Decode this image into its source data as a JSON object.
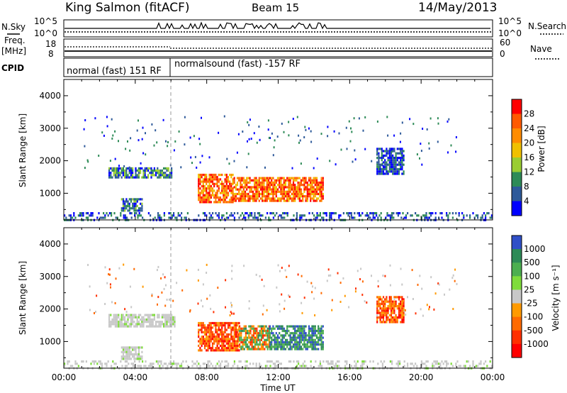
{
  "header": {
    "station": "King Salmon (fitACF)",
    "beam": "Beam 15",
    "date": "14/May/2013"
  },
  "panels": {
    "nsky": {
      "label": "N.Sky",
      "ticks": [
        "10^5",
        "10^0"
      ],
      "right_label": "N.Search",
      "right_ticks": [
        "10^5",
        "10^0"
      ]
    },
    "freq": {
      "label_line1": "Freq.",
      "label_line2": "[MHz]",
      "ticks": [
        "18",
        "8"
      ],
      "right_label": "Nave",
      "right_ticks": [
        "60",
        "0"
      ]
    },
    "cpid": {
      "label": "CPID",
      "modes": [
        "normal (fast) 151 RF",
        "normalsound (fast) -157 RF"
      ]
    }
  },
  "colorbars": {
    "power": {
      "label": "Power [dB]",
      "ticks": [
        "28",
        "24",
        "20",
        "16",
        "12",
        "8",
        "4"
      ],
      "colors": [
        "#ff0000",
        "#ff5a00",
        "#ff8c00",
        "#f0c000",
        "#9acd32",
        "#2e8b57",
        "#2e5a9a",
        "#0000ff"
      ]
    },
    "velocity": {
      "label": "Velocity [m s⁻¹]",
      "ticks": [
        "1000",
        "500",
        "100",
        "25",
        "-25",
        "-100",
        "-500",
        "-1000"
      ],
      "colors": [
        "#3050c8",
        "#2e8b57",
        "#4caf50",
        "#7fdc3c",
        "#c8c8c8",
        "#ff9a00",
        "#ff6a00",
        "#ff3000",
        "#ff0000"
      ]
    }
  },
  "chart_data": [
    {
      "type": "heatmap",
      "title": "Power",
      "ylabel": "Slant Range [km]",
      "xlabel": "Time UT",
      "ylim": [
        180,
        4500
      ],
      "xlim": [
        0,
        24
      ],
      "yticks": [
        "1000",
        "2000",
        "3000",
        "4000"
      ],
      "xticks": [
        "00:00",
        "04:00",
        "08:00",
        "12:00",
        "16:00",
        "20:00",
        "00:00"
      ],
      "regions": [
        {
          "t0": 2.5,
          "t1": 6.0,
          "r0": 1500,
          "r1": 1800,
          "level": "mid",
          "palette": "power"
        },
        {
          "t0": 7.5,
          "t1": 9.5,
          "r0": 700,
          "r1": 1600,
          "level": "high",
          "palette": "power"
        },
        {
          "t0": 9.5,
          "t1": 11.5,
          "r0": 800,
          "r1": 1500,
          "level": "high",
          "palette": "power"
        },
        {
          "t0": 11.5,
          "t1": 14.5,
          "r0": 750,
          "r1": 1500,
          "level": "high",
          "palette": "power"
        },
        {
          "t0": 3.2,
          "t1": 4.4,
          "r0": 500,
          "r1": 850,
          "level": "mid",
          "palette": "power"
        },
        {
          "t0": 17.5,
          "t1": 19.0,
          "r0": 1600,
          "r1": 2400,
          "level": "low",
          "palette": "power"
        },
        {
          "t0": 0.0,
          "t1": 24.0,
          "r0": 180,
          "r1": 420,
          "level": "low",
          "palette": "power"
        }
      ]
    },
    {
      "type": "heatmap",
      "title": "Velocity",
      "ylabel": "Slant Range [km]",
      "xlabel": "Time UT",
      "ylim": [
        180,
        4500
      ],
      "xlim": [
        0,
        24
      ],
      "yticks": [
        "1000",
        "2000",
        "3000",
        "4000"
      ],
      "xticks": [
        "00:00",
        "04:00",
        "08:00",
        "12:00",
        "16:00",
        "20:00",
        "00:00"
      ],
      "regions": [
        {
          "t0": 2.5,
          "t1": 6.2,
          "r0": 1500,
          "r1": 1850,
          "level": "ground",
          "palette": "velocity"
        },
        {
          "t0": 7.5,
          "t1": 9.8,
          "r0": 700,
          "r1": 1600,
          "level": "neg",
          "palette": "velocity"
        },
        {
          "t0": 9.8,
          "t1": 11.5,
          "r0": 800,
          "r1": 1500,
          "level": "mixed",
          "palette": "velocity"
        },
        {
          "t0": 11.5,
          "t1": 14.5,
          "r0": 750,
          "r1": 1500,
          "level": "pos",
          "palette": "velocity"
        },
        {
          "t0": 3.2,
          "t1": 4.4,
          "r0": 500,
          "r1": 850,
          "level": "ground",
          "palette": "velocity"
        },
        {
          "t0": 17.5,
          "t1": 19.0,
          "r0": 1600,
          "r1": 2400,
          "level": "neg",
          "palette": "velocity"
        },
        {
          "t0": 0.0,
          "t1": 24.0,
          "r0": 180,
          "r1": 420,
          "level": "ground",
          "palette": "velocity"
        }
      ]
    }
  ]
}
